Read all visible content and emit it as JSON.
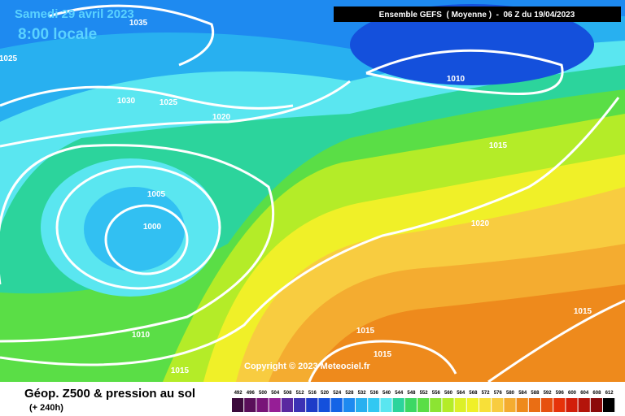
{
  "header": {
    "date": "Samedi 29 avril 2023",
    "time": "8:00 locale",
    "run": "Ensemble GEFS  ( Moyenne )  -  06 Z du 19/04/2023"
  },
  "isobar_labels": [
    "1035",
    "1025",
    "1030",
    "1025",
    "1020",
    "1010",
    "1015",
    "1005",
    "1000",
    "1020",
    "1015",
    "1015",
    "1015",
    "1010",
    "1015"
  ],
  "copyright": "Copyright © 2023 Meteociel.fr",
  "footer": {
    "title": "Géop. Z500 & pression au sol",
    "lead": "(+ 240h)"
  },
  "scale": {
    "labels": [
      "492",
      "496",
      "500",
      "504",
      "508",
      "512",
      "516",
      "520",
      "524",
      "528",
      "532",
      "536",
      "540",
      "544",
      "548",
      "552",
      "556",
      "560",
      "564",
      "568",
      "572",
      "576",
      "580",
      "584",
      "588",
      "592",
      "596",
      "600",
      "604",
      "608",
      "612"
    ]
  }
}
